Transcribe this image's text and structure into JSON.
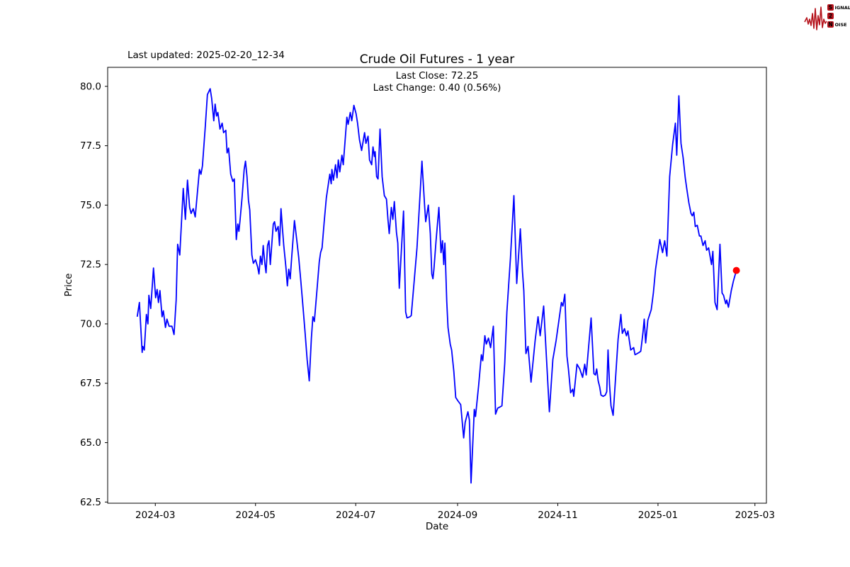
{
  "header": {
    "last_updated": "Last updated: 2025-02-20_12-34",
    "logo": {
      "s": "S",
      "rest1": "IGNAL",
      "two": "2",
      "n": "N",
      "rest2": "OISE",
      "accent_color": "#b5121b"
    }
  },
  "chart_data": {
    "type": "line",
    "title": "Crude Oil Futures - 1 year",
    "subtitle_line1": "Last Close: 72.25",
    "subtitle_line2": "Last Change: 0.40 (0.56%)",
    "xlabel": "Date",
    "ylabel": "Price",
    "last_close": 72.25,
    "last_change": "0.40 (0.56%)",
    "line_color": "#0000ff",
    "last_point_color": "#ff0000",
    "x_unit": "days since 2024-02-19",
    "xlim": [
      -18,
      383
    ],
    "ylim": [
      62.45,
      80.8
    ],
    "x_ticks": [
      {
        "pos": 11,
        "label": "2024-03"
      },
      {
        "pos": 72,
        "label": "2024-05"
      },
      {
        "pos": 133,
        "label": "2024-07"
      },
      {
        "pos": 195,
        "label": "2024-09"
      },
      {
        "pos": 256,
        "label": "2024-11"
      },
      {
        "pos": 317,
        "label": "2025-01"
      },
      {
        "pos": 376,
        "label": "2025-03"
      }
    ],
    "y_ticks": [
      {
        "pos": 80.0,
        "label": "80.0"
      },
      {
        "pos": 77.5,
        "label": "77.5"
      },
      {
        "pos": 75.0,
        "label": "75.0"
      },
      {
        "pos": 72.5,
        "label": "72.5"
      },
      {
        "pos": 70.0,
        "label": "70.0"
      },
      {
        "pos": 67.5,
        "label": "67.5"
      },
      {
        "pos": 65.0,
        "label": "65.0"
      },
      {
        "pos": 62.5,
        "label": "62.5"
      }
    ],
    "points": [
      [
        0,
        70.3
      ],
      [
        1.3,
        70.9
      ],
      [
        3,
        68.8
      ],
      [
        3.4,
        69.05
      ],
      [
        4.3,
        68.9
      ],
      [
        5.6,
        70.4
      ],
      [
        6.5,
        70.0
      ],
      [
        7.1,
        71.2
      ],
      [
        8.2,
        70.65
      ],
      [
        9.9,
        72.35
      ],
      [
        11.2,
        71.1
      ],
      [
        12.1,
        71.45
      ],
      [
        12.9,
        70.9
      ],
      [
        13.8,
        71.4
      ],
      [
        15.1,
        70.3
      ],
      [
        15.9,
        70.55
      ],
      [
        17.2,
        69.85
      ],
      [
        18.1,
        70.2
      ],
      [
        19.4,
        69.9
      ],
      [
        21.1,
        69.9
      ],
      [
        22.4,
        69.55
      ],
      [
        23.7,
        71.0
      ],
      [
        24.6,
        73.35
      ],
      [
        25.9,
        72.9
      ],
      [
        28,
        75.7
      ],
      [
        29.3,
        74.4
      ],
      [
        30.6,
        76.05
      ],
      [
        31.9,
        74.9
      ],
      [
        32.8,
        74.65
      ],
      [
        34.1,
        74.85
      ],
      [
        35.3,
        74.5
      ],
      [
        37.9,
        76.5
      ],
      [
        38.8,
        76.3
      ],
      [
        39.7,
        76.65
      ],
      [
        41.4,
        78.3
      ],
      [
        42.7,
        79.65
      ],
      [
        44.4,
        79.9
      ],
      [
        45.3,
        79.5
      ],
      [
        46.6,
        78.55
      ],
      [
        47.4,
        79.25
      ],
      [
        48.3,
        78.75
      ],
      [
        49.1,
        78.9
      ],
      [
        50.4,
        78.2
      ],
      [
        51.7,
        78.45
      ],
      [
        52.6,
        78.05
      ],
      [
        53.9,
        78.15
      ],
      [
        54.7,
        77.2
      ],
      [
        55.6,
        77.4
      ],
      [
        56.9,
        76.3
      ],
      [
        58.2,
        76.0
      ],
      [
        59.1,
        76.1
      ],
      [
        60.3,
        73.55
      ],
      [
        61.2,
        74.2
      ],
      [
        61.9,
        73.9
      ],
      [
        62.5,
        74.3
      ],
      [
        63.8,
        75.3
      ],
      [
        65.1,
        76.5
      ],
      [
        65.9,
        76.85
      ],
      [
        66.8,
        76.2
      ],
      [
        67.7,
        75.2
      ],
      [
        68.5,
        74.8
      ],
      [
        69.8,
        72.9
      ],
      [
        70.7,
        72.55
      ],
      [
        72,
        72.7
      ],
      [
        73.3,
        72.4
      ],
      [
        74.1,
        72.1
      ],
      [
        75,
        72.85
      ],
      [
        75.9,
        72.5
      ],
      [
        76.7,
        73.3
      ],
      [
        77.6,
        72.6
      ],
      [
        78.4,
        72.15
      ],
      [
        79.3,
        73.3
      ],
      [
        80.2,
        73.5
      ],
      [
        81,
        72.5
      ],
      [
        82.8,
        74.2
      ],
      [
        83.6,
        74.3
      ],
      [
        84.5,
        73.9
      ],
      [
        85.8,
        74.1
      ],
      [
        86.6,
        73.3
      ],
      [
        87.5,
        74.85
      ],
      [
        88.4,
        74.0
      ],
      [
        89.2,
        73.3
      ],
      [
        90.5,
        72.4
      ],
      [
        91.4,
        71.6
      ],
      [
        92.2,
        72.3
      ],
      [
        93.1,
        71.9
      ],
      [
        94,
        72.8
      ],
      [
        95.7,
        74.35
      ],
      [
        97,
        73.6
      ],
      [
        98.3,
        72.8
      ],
      [
        99.6,
        71.8
      ],
      [
        100.9,
        70.7
      ],
      [
        102.2,
        69.6
      ],
      [
        103.4,
        68.5
      ],
      [
        104.7,
        67.6
      ],
      [
        106,
        69.4
      ],
      [
        106.9,
        70.3
      ],
      [
        107.8,
        70.1
      ],
      [
        109.5,
        71.5
      ],
      [
        110.8,
        72.6
      ],
      [
        111.6,
        73.0
      ],
      [
        112.5,
        73.2
      ],
      [
        113.8,
        74.3
      ],
      [
        115.1,
        75.3
      ],
      [
        117.2,
        76.3
      ],
      [
        118.1,
        75.9
      ],
      [
        118.5,
        76.5
      ],
      [
        119.4,
        76.05
      ],
      [
        120.7,
        76.7
      ],
      [
        121.6,
        76.15
      ],
      [
        122.4,
        76.9
      ],
      [
        123.3,
        76.4
      ],
      [
        124.6,
        77.1
      ],
      [
        125.4,
        76.7
      ],
      [
        127.6,
        78.7
      ],
      [
        128.4,
        78.4
      ],
      [
        129.7,
        78.9
      ],
      [
        130.6,
        78.55
      ],
      [
        131.9,
        79.2
      ],
      [
        133.2,
        78.85
      ],
      [
        134.1,
        78.45
      ],
      [
        135.3,
        77.75
      ],
      [
        136.6,
        77.3
      ],
      [
        138.4,
        78.05
      ],
      [
        139.2,
        77.6
      ],
      [
        140.5,
        77.9
      ],
      [
        141.4,
        76.9
      ],
      [
        142.7,
        76.7
      ],
      [
        143.5,
        77.45
      ],
      [
        144.4,
        77.05
      ],
      [
        144.8,
        77.25
      ],
      [
        145.7,
        76.2
      ],
      [
        146.6,
        76.1
      ],
      [
        147.8,
        78.2
      ],
      [
        149.1,
        76.2
      ],
      [
        150.4,
        75.4
      ],
      [
        151.7,
        75.25
      ],
      [
        152.6,
        74.4
      ],
      [
        153.4,
        73.8
      ],
      [
        154.7,
        74.9
      ],
      [
        155.6,
        74.4
      ],
      [
        156.5,
        75.15
      ],
      [
        157.8,
        73.85
      ],
      [
        158.6,
        73.4
      ],
      [
        159.5,
        71.5
      ],
      [
        162.1,
        74.75
      ],
      [
        163.4,
        70.5
      ],
      [
        164.2,
        70.25
      ],
      [
        166,
        70.3
      ],
      [
        166.8,
        70.35
      ],
      [
        170.3,
        73.2
      ],
      [
        173.3,
        76.85
      ],
      [
        175,
        74.9
      ],
      [
        175.6,
        74.3
      ],
      [
        177.2,
        75.0
      ],
      [
        178.4,
        73.8
      ],
      [
        179.3,
        72.1
      ],
      [
        180,
        71.9
      ],
      [
        180.6,
        72.3
      ],
      [
        181.9,
        73.5
      ],
      [
        183.6,
        74.9
      ],
      [
        184.9,
        73.0
      ],
      [
        185.8,
        73.5
      ],
      [
        186.6,
        72.5
      ],
      [
        187.3,
        73.4
      ],
      [
        188.4,
        70.95
      ],
      [
        189.2,
        69.85
      ],
      [
        190.5,
        69.15
      ],
      [
        191.4,
        68.9
      ],
      [
        192.7,
        68.0
      ],
      [
        193.9,
        66.9
      ],
      [
        195.3,
        66.75
      ],
      [
        196.9,
        66.6
      ],
      [
        198.7,
        65.2
      ],
      [
        199.6,
        65.85
      ],
      [
        201.3,
        66.3
      ],
      [
        202.2,
        65.95
      ],
      [
        203.2,
        63.3
      ],
      [
        205.2,
        66.4
      ],
      [
        205.9,
        66.1
      ],
      [
        207.8,
        67.4
      ],
      [
        209.5,
        68.7
      ],
      [
        210.3,
        68.45
      ],
      [
        211.6,
        69.5
      ],
      [
        212.5,
        69.15
      ],
      [
        213.8,
        69.4
      ],
      [
        215.1,
        69.0
      ],
      [
        216.8,
        69.9
      ],
      [
        218.1,
        66.2
      ],
      [
        219.4,
        66.45
      ],
      [
        220.7,
        66.5
      ],
      [
        222,
        66.55
      ],
      [
        223.7,
        68.35
      ],
      [
        225,
        70.5
      ],
      [
        227.2,
        72.8
      ],
      [
        229.3,
        75.4
      ],
      [
        231,
        71.7
      ],
      [
        233.2,
        74.0
      ],
      [
        234.5,
        72.2
      ],
      [
        235.3,
        71.4
      ],
      [
        236.6,
        68.75
      ],
      [
        237.9,
        69.05
      ],
      [
        239.7,
        67.55
      ],
      [
        242.2,
        69.3
      ],
      [
        244,
        70.3
      ],
      [
        245.3,
        69.5
      ],
      [
        247.4,
        70.75
      ],
      [
        250.9,
        66.3
      ],
      [
        253,
        68.5
      ],
      [
        255,
        69.3
      ],
      [
        258.2,
        70.9
      ],
      [
        259.1,
        70.75
      ],
      [
        260.3,
        71.25
      ],
      [
        261.6,
        68.65
      ],
      [
        262.5,
        68.1
      ],
      [
        263.8,
        67.1
      ],
      [
        265.1,
        67.25
      ],
      [
        265.7,
        66.95
      ],
      [
        267.7,
        68.3
      ],
      [
        269.4,
        68.1
      ],
      [
        271.1,
        67.75
      ],
      [
        272.4,
        68.3
      ],
      [
        273.3,
        67.85
      ],
      [
        276.3,
        70.25
      ],
      [
        278,
        67.9
      ],
      [
        278.9,
        67.85
      ],
      [
        279.7,
        68.1
      ],
      [
        280.6,
        67.6
      ],
      [
        281.5,
        67.35
      ],
      [
        282.3,
        67.0
      ],
      [
        283.6,
        66.95
      ],
      [
        284.9,
        67.0
      ],
      [
        285.8,
        67.15
      ],
      [
        286.6,
        68.9
      ],
      [
        287.5,
        67.45
      ],
      [
        288.4,
        66.55
      ],
      [
        289.7,
        66.15
      ],
      [
        292.7,
        69.35
      ],
      [
        294.4,
        70.4
      ],
      [
        295.3,
        69.6
      ],
      [
        296.6,
        69.8
      ],
      [
        297.8,
        69.5
      ],
      [
        298.7,
        69.7
      ],
      [
        300.4,
        68.9
      ],
      [
        302.2,
        69.0
      ],
      [
        303,
        68.7
      ],
      [
        304.3,
        68.75
      ],
      [
        305.6,
        68.8
      ],
      [
        306.5,
        68.85
      ],
      [
        307.8,
        69.6
      ],
      [
        308.6,
        70.2
      ],
      [
        309.5,
        69.2
      ],
      [
        310.8,
        70.15
      ],
      [
        312.9,
        70.6
      ],
      [
        314.2,
        71.3
      ],
      [
        315.5,
        72.3
      ],
      [
        318.1,
        73.55
      ],
      [
        319.8,
        73.0
      ],
      [
        321.1,
        73.5
      ],
      [
        322.4,
        72.85
      ],
      [
        324.1,
        76.2
      ],
      [
        325.9,
        77.55
      ],
      [
        327.6,
        78.45
      ],
      [
        328.4,
        77.1
      ],
      [
        329.7,
        79.6
      ],
      [
        331,
        77.6
      ],
      [
        332.3,
        77.0
      ],
      [
        333.6,
        76.15
      ],
      [
        334.5,
        75.7
      ],
      [
        335.8,
        75.1
      ],
      [
        337.1,
        74.65
      ],
      [
        337.9,
        74.55
      ],
      [
        338.8,
        74.7
      ],
      [
        339.7,
        74.1
      ],
      [
        340.9,
        74.15
      ],
      [
        342.2,
        73.7
      ],
      [
        343.1,
        73.7
      ],
      [
        344.4,
        73.3
      ],
      [
        345.7,
        73.5
      ],
      [
        346.6,
        73.1
      ],
      [
        347.8,
        73.2
      ],
      [
        349.6,
        72.5
      ],
      [
        350.4,
        73.05
      ],
      [
        351.7,
        70.9
      ],
      [
        353,
        70.6
      ],
      [
        354.7,
        73.35
      ],
      [
        356,
        71.3
      ],
      [
        356.9,
        71.2
      ],
      [
        358.2,
        70.85
      ],
      [
        358.8,
        71.0
      ],
      [
        359.9,
        70.7
      ],
      [
        361.6,
        71.4
      ],
      [
        362.9,
        71.8
      ],
      [
        364.7,
        72.25
      ]
    ]
  }
}
